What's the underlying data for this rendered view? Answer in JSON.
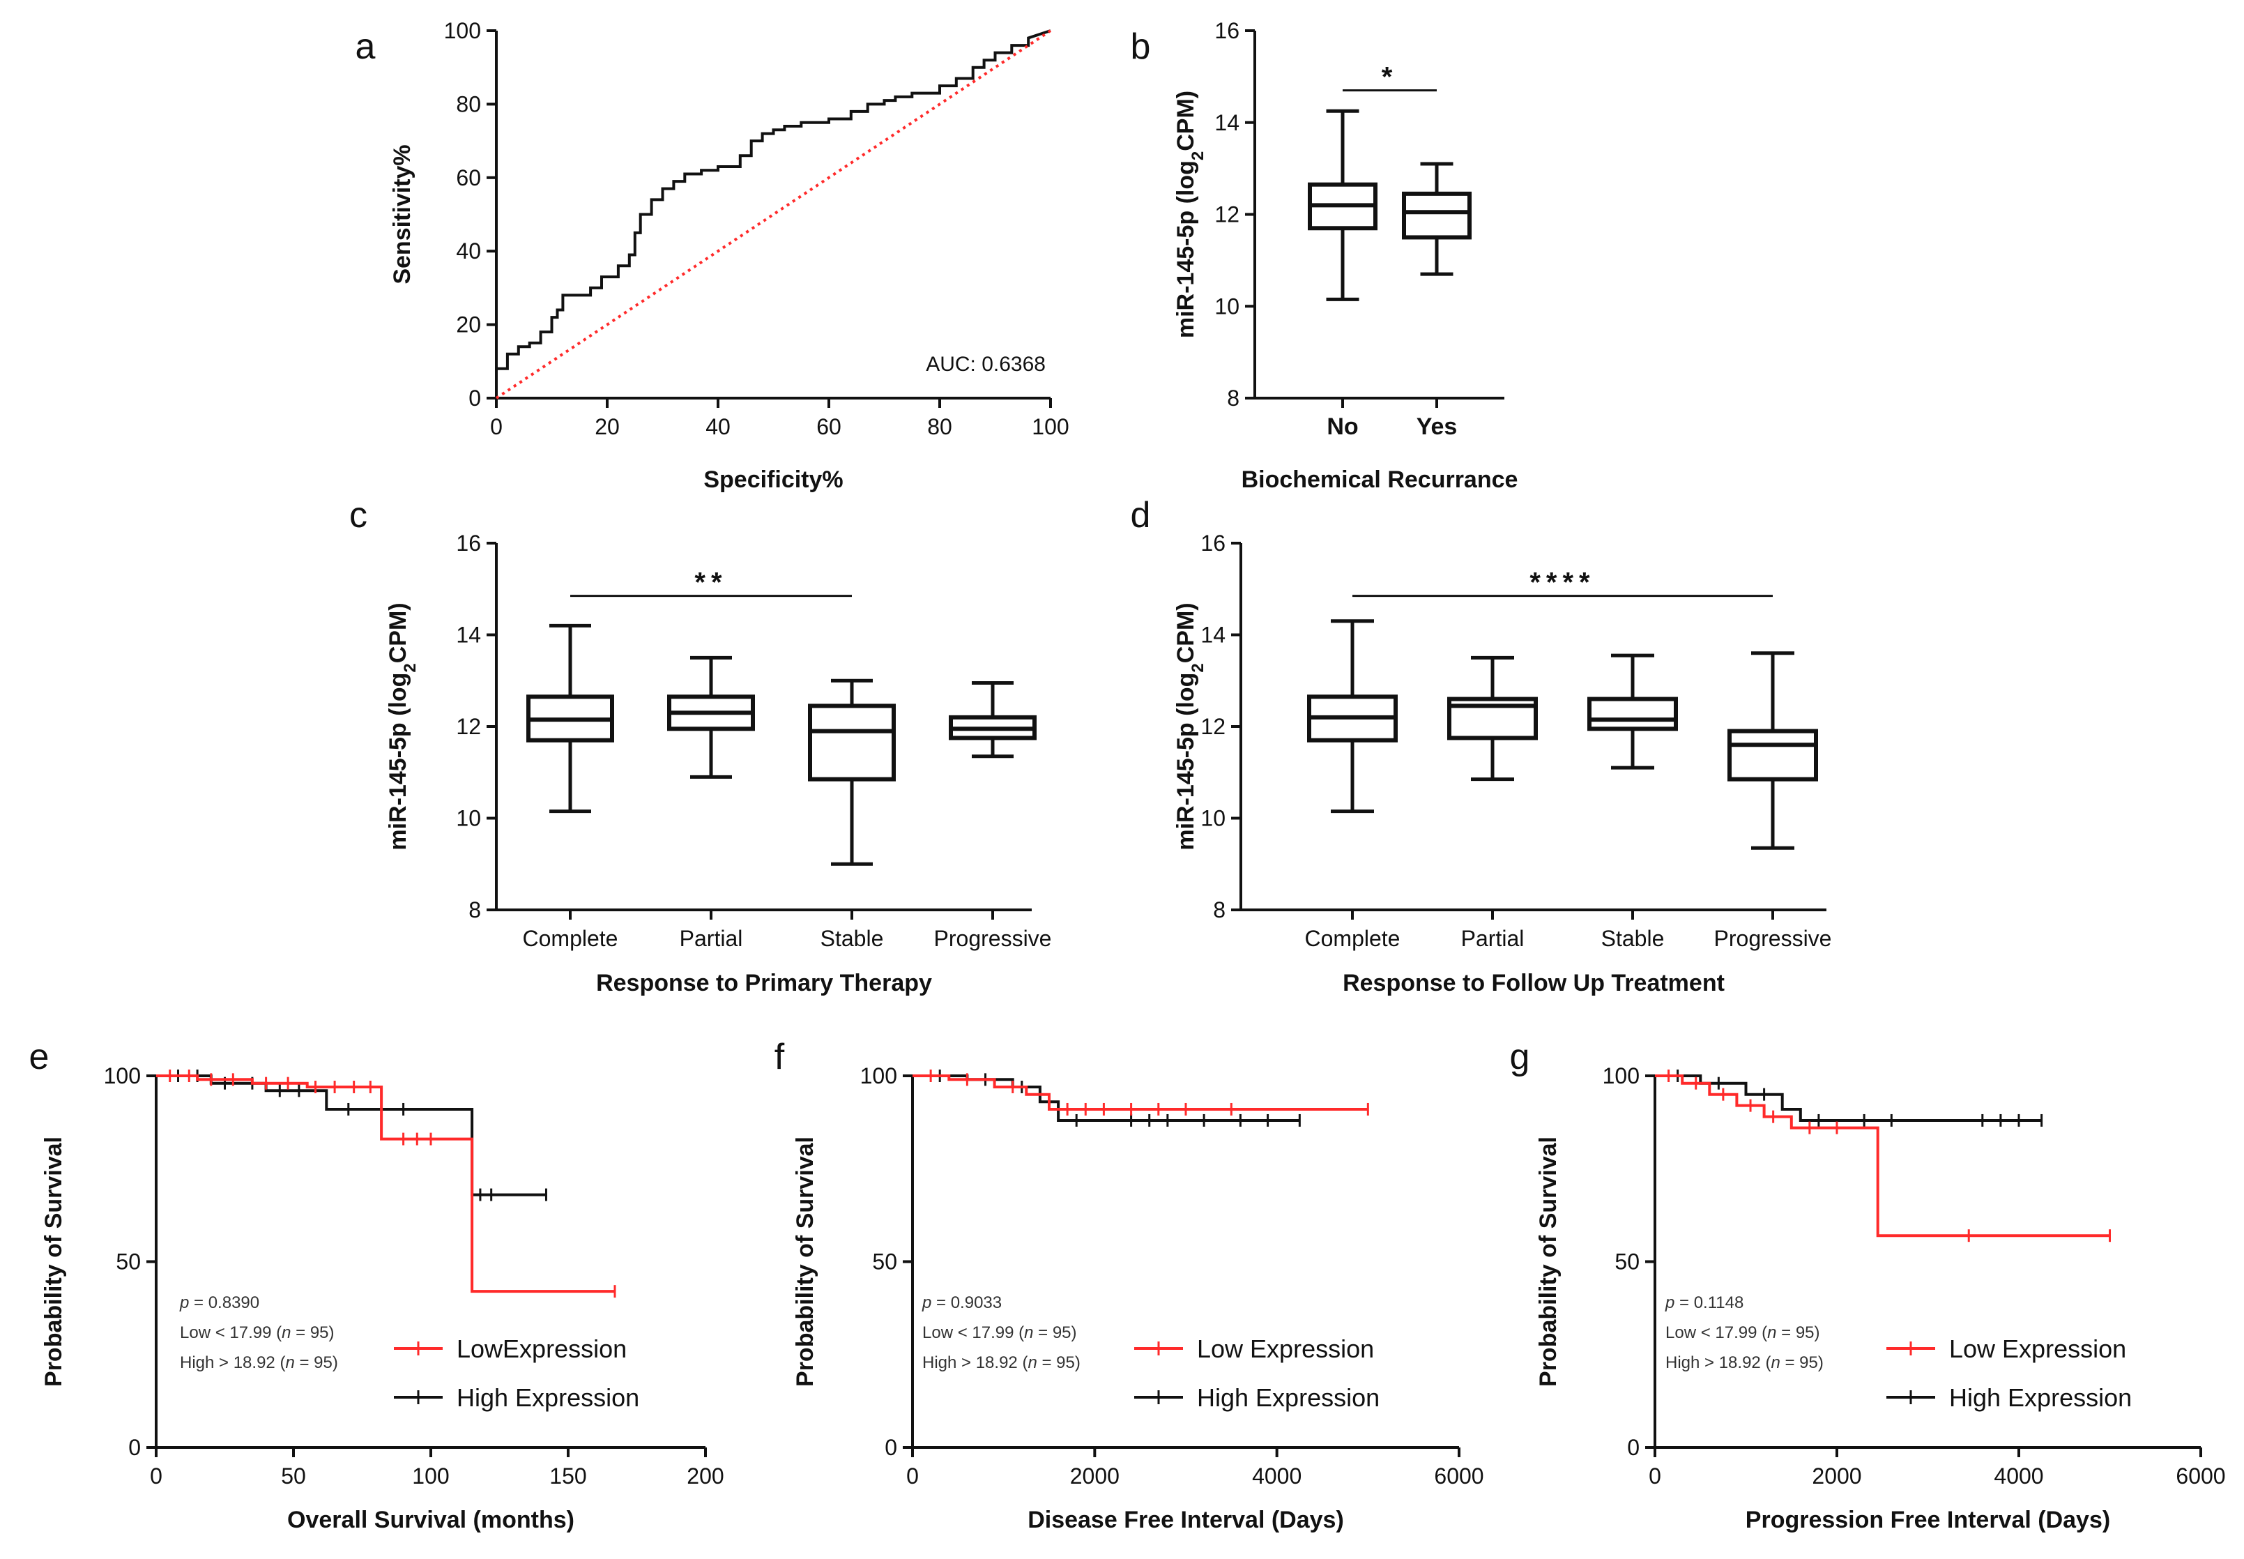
{
  "chart_data": [
    {
      "panel": "a",
      "type": "line",
      "xlabel": "Specificity%",
      "ylabel": "Sensitivity%",
      "xlim": [
        0,
        100
      ],
      "ylim": [
        0,
        100
      ],
      "xticks": [
        0,
        20,
        40,
        60,
        80,
        100
      ],
      "yticks": [
        0,
        20,
        40,
        60,
        80,
        100
      ],
      "annotation": "AUC: 0.6368",
      "series": [
        {
          "name": "ROC",
          "color": "#111111",
          "style": "step",
          "x": [
            0,
            0,
            2,
            2,
            4,
            4,
            6,
            6,
            8,
            8,
            10,
            10,
            11,
            11,
            12,
            12,
            17,
            17,
            19,
            19,
            22,
            22,
            24,
            24,
            25,
            25,
            26,
            26,
            28,
            28,
            30,
            30,
            32,
            32,
            34,
            34,
            37,
            37,
            40,
            40,
            44,
            44,
            46,
            46,
            48,
            48,
            50,
            50,
            52,
            52,
            55,
            55,
            60,
            60,
            64,
            64,
            67,
            67,
            70,
            70,
            72,
            72,
            75,
            75,
            80,
            80,
            83,
            83,
            86,
            86,
            88,
            88,
            90,
            90,
            93,
            93,
            96,
            96,
            100
          ],
          "y": [
            0,
            8,
            8,
            12,
            12,
            14,
            14,
            15,
            15,
            18,
            18,
            22,
            22,
            24,
            24,
            28,
            28,
            30,
            30,
            33,
            33,
            36,
            36,
            39,
            39,
            45,
            45,
            50,
            50,
            54,
            54,
            57,
            57,
            59,
            59,
            61,
            61,
            62,
            62,
            63,
            63,
            66,
            66,
            70,
            70,
            72,
            72,
            73,
            73,
            74,
            74,
            75,
            75,
            76,
            76,
            78,
            78,
            80,
            80,
            81,
            81,
            82,
            82,
            83,
            83,
            85,
            85,
            87,
            87,
            90,
            90,
            92,
            92,
            94,
            94,
            96,
            96,
            98,
            100
          ]
        },
        {
          "name": "Reference",
          "color": "#ff2a2a",
          "style": "dotted",
          "x": [
            0,
            100
          ],
          "y": [
            0,
            100
          ]
        }
      ]
    },
    {
      "panel": "b",
      "type": "box",
      "xlabel": "Biochemical Recurrance",
      "ylabel": "miR-145-5p (log2CPM)",
      "ylim": [
        8,
        16
      ],
      "yticks": [
        8,
        10,
        12,
        14,
        16
      ],
      "categories": [
        "No",
        "Yes"
      ],
      "boxes": [
        {
          "min": 10.15,
          "q1": 11.7,
          "median": 12.2,
          "q3": 12.65,
          "max": 14.25
        },
        {
          "min": 10.7,
          "q1": 11.5,
          "median": 12.05,
          "q3": 12.45,
          "max": 13.1
        }
      ],
      "significance": {
        "label": "*",
        "from": 0,
        "to": 1,
        "y": 14.7
      }
    },
    {
      "panel": "c",
      "type": "box",
      "xlabel": "Response to Primary Therapy",
      "ylabel": "miR-145-5p (log2CPM)",
      "ylim": [
        8,
        16
      ],
      "yticks": [
        8,
        10,
        12,
        14,
        16
      ],
      "categories": [
        "Complete",
        "Partial",
        "Stable",
        "Progressive"
      ],
      "boxes": [
        {
          "min": 10.15,
          "q1": 11.7,
          "median": 12.15,
          "q3": 12.65,
          "max": 14.2
        },
        {
          "min": 10.9,
          "q1": 11.95,
          "median": 12.3,
          "q3": 12.65,
          "max": 13.5
        },
        {
          "min": 9.0,
          "q1": 10.85,
          "median": 11.9,
          "q3": 12.45,
          "max": 13.0
        },
        {
          "min": 11.35,
          "q1": 11.75,
          "median": 11.95,
          "q3": 12.2,
          "max": 12.95
        }
      ],
      "significance": {
        "label": "**",
        "from": 0,
        "to": 2,
        "y": 14.85
      }
    },
    {
      "panel": "d",
      "type": "box",
      "xlabel": "Response to Follow Up Treatment",
      "ylabel": "miR-145-5p (log2CPM)",
      "ylim": [
        8,
        16
      ],
      "yticks": [
        8,
        10,
        12,
        14,
        16
      ],
      "categories": [
        "Complete",
        "Partial",
        "Stable",
        "Progressive"
      ],
      "boxes": [
        {
          "min": 10.15,
          "q1": 11.7,
          "median": 12.2,
          "q3": 12.65,
          "max": 14.3
        },
        {
          "min": 10.85,
          "q1": 11.75,
          "median": 12.45,
          "q3": 12.6,
          "max": 13.5
        },
        {
          "min": 11.1,
          "q1": 11.95,
          "median": 12.15,
          "q3": 12.6,
          "max": 13.55
        },
        {
          "min": 9.35,
          "q1": 10.85,
          "median": 11.6,
          "q3": 11.9,
          "max": 13.6
        }
      ],
      "significance": {
        "label": "****",
        "from": 0,
        "to": 3,
        "y": 14.85
      }
    },
    {
      "panel": "e",
      "type": "line",
      "style": "kaplan-meier",
      "xlabel": "Overall Survival (months)",
      "ylabel": "Probability of Survival",
      "xlim": [
        0,
        200
      ],
      "ylim": [
        0,
        100
      ],
      "xticks": [
        0,
        50,
        100,
        150,
        200
      ],
      "yticks": [
        0,
        50,
        100
      ],
      "stats": {
        "p": "0.8390",
        "low": "17.99",
        "high": "18.92",
        "n_low": "95",
        "n_high": "95"
      },
      "series": [
        {
          "name": "LowExpression",
          "color": "#ff2a2a",
          "x": [
            0,
            15,
            15,
            35,
            35,
            55,
            55,
            82,
            82,
            115,
            115,
            167
          ],
          "y": [
            100,
            100,
            99,
            99,
            98,
            98,
            97,
            97,
            83,
            83,
            42,
            42
          ],
          "censors": [
            [
              5,
              100
            ],
            [
              12,
              100
            ],
            [
              20,
              99
            ],
            [
              28,
              99
            ],
            [
              40,
              98
            ],
            [
              48,
              98
            ],
            [
              58,
              97
            ],
            [
              65,
              97
            ],
            [
              72,
              97
            ],
            [
              78,
              97
            ],
            [
              90,
              83
            ],
            [
              95,
              83
            ],
            [
              100,
              83
            ],
            [
              167,
              42
            ]
          ]
        },
        {
          "name": "High Expression",
          "color": "#111111",
          "x": [
            0,
            20,
            20,
            40,
            40,
            62,
            62,
            115,
            115,
            142
          ],
          "y": [
            100,
            100,
            98,
            98,
            96,
            96,
            91,
            91,
            68,
            68
          ],
          "censors": [
            [
              8,
              100
            ],
            [
              15,
              100
            ],
            [
              25,
              98
            ],
            [
              35,
              98
            ],
            [
              45,
              96
            ],
            [
              52,
              96
            ],
            [
              70,
              91
            ],
            [
              90,
              91
            ],
            [
              118,
              68
            ],
            [
              122,
              68
            ],
            [
              142,
              68
            ]
          ]
        }
      ]
    },
    {
      "panel": "f",
      "type": "line",
      "style": "kaplan-meier",
      "xlabel": "Disease Free Interval (Days)",
      "ylabel": "Probability of Survival",
      "xlim": [
        0,
        6000
      ],
      "ylim": [
        0,
        100
      ],
      "xticks": [
        0,
        2000,
        4000,
        6000
      ],
      "yticks": [
        0,
        50,
        100
      ],
      "stats": {
        "p": "0.9033",
        "low": "17.99",
        "high": "18.92",
        "n_low": "95",
        "n_high": "95"
      },
      "series": [
        {
          "name": "Low Expression",
          "color": "#ff2a2a",
          "x": [
            0,
            400,
            400,
            900,
            900,
            1250,
            1250,
            1500,
            1500,
            5000
          ],
          "y": [
            100,
            100,
            99,
            99,
            97,
            97,
            95,
            95,
            91,
            91
          ],
          "censors": [
            [
              200,
              100
            ],
            [
              600,
              99
            ],
            [
              1100,
              97
            ],
            [
              1700,
              91
            ],
            [
              1900,
              91
            ],
            [
              2100,
              91
            ],
            [
              2400,
              91
            ],
            [
              2700,
              91
            ],
            [
              3000,
              91
            ],
            [
              3500,
              91
            ],
            [
              5000,
              91
            ]
          ]
        },
        {
          "name": "High Expression",
          "color": "#111111",
          "x": [
            0,
            600,
            600,
            1100,
            1100,
            1400,
            1400,
            1600,
            1600,
            4250
          ],
          "y": [
            100,
            100,
            99,
            99,
            97,
            97,
            93,
            93,
            88,
            88
          ],
          "censors": [
            [
              300,
              100
            ],
            [
              800,
              99
            ],
            [
              1200,
              97
            ],
            [
              1800,
              88
            ],
            [
              2400,
              88
            ],
            [
              2600,
              88
            ],
            [
              2800,
              88
            ],
            [
              3200,
              88
            ],
            [
              3600,
              88
            ],
            [
              3900,
              88
            ],
            [
              4250,
              88
            ]
          ]
        }
      ]
    },
    {
      "panel": "g",
      "type": "line",
      "style": "kaplan-meier",
      "xlabel": "Progression Free Interval (Days)",
      "ylabel": "Probability of Survival",
      "xlim": [
        0,
        6000
      ],
      "ylim": [
        0,
        100
      ],
      "xticks": [
        0,
        2000,
        4000,
        6000
      ],
      "yticks": [
        0,
        50,
        100
      ],
      "stats": {
        "p": "0.1148",
        "low": "17.99",
        "high": "18.92",
        "n_low": "95",
        "n_high": "95"
      },
      "series": [
        {
          "name": "Low Expression",
          "color": "#ff2a2a",
          "x": [
            0,
            300,
            300,
            600,
            600,
            900,
            900,
            1200,
            1200,
            1500,
            1500,
            2450,
            2450,
            5000
          ],
          "y": [
            100,
            100,
            98,
            98,
            95,
            95,
            92,
            92,
            89,
            89,
            86,
            86,
            57,
            57
          ],
          "censors": [
            [
              150,
              100
            ],
            [
              450,
              98
            ],
            [
              750,
              95
            ],
            [
              1050,
              92
            ],
            [
              1300,
              89
            ],
            [
              1700,
              86
            ],
            [
              2000,
              86
            ],
            [
              3450,
              57
            ],
            [
              5000,
              57
            ]
          ]
        },
        {
          "name": "High Expression",
          "color": "#111111",
          "x": [
            0,
            500,
            500,
            1000,
            1000,
            1400,
            1400,
            1600,
            1600,
            4250
          ],
          "y": [
            100,
            100,
            98,
            98,
            95,
            95,
            91,
            91,
            88,
            88
          ],
          "censors": [
            [
              250,
              100
            ],
            [
              700,
              98
            ],
            [
              1200,
              95
            ],
            [
              1800,
              88
            ],
            [
              2300,
              88
            ],
            [
              2600,
              88
            ],
            [
              3600,
              88
            ],
            [
              3800,
              88
            ],
            [
              4000,
              88
            ],
            [
              4250,
              88
            ]
          ]
        }
      ]
    }
  ]
}
